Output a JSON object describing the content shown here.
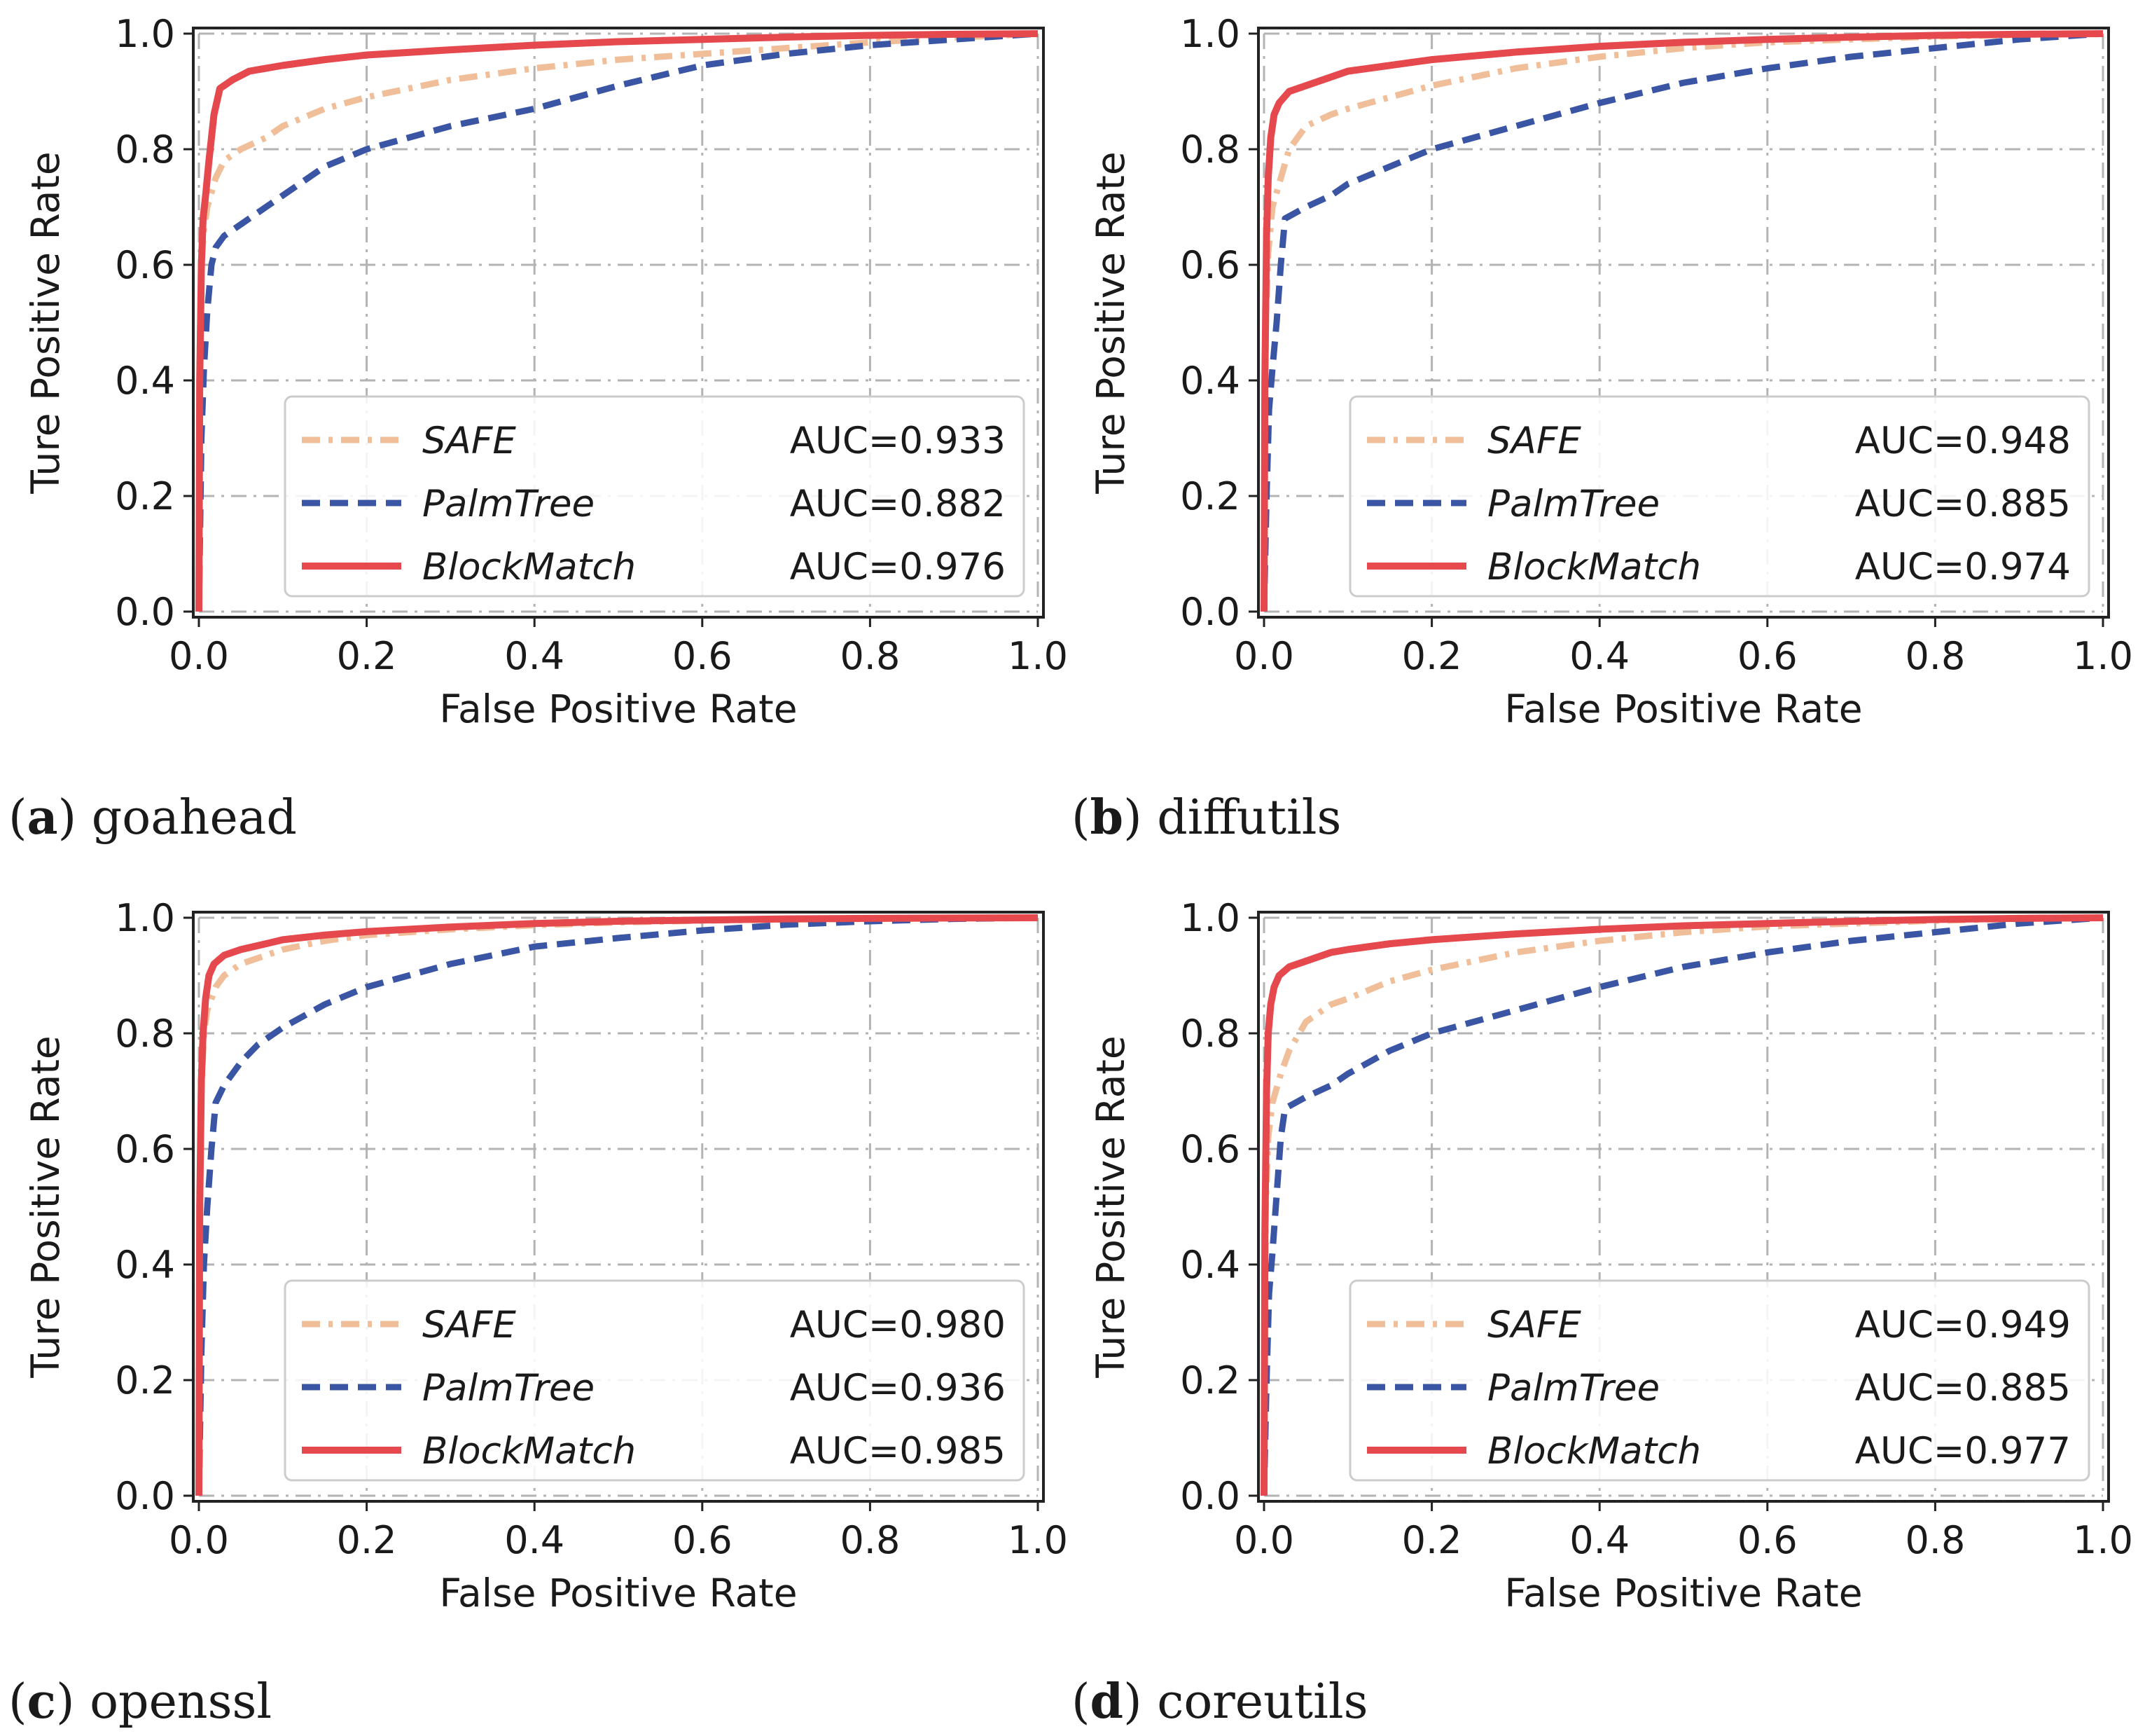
{
  "figure": {
    "axis_x_label": "False Positive Rate",
    "axis_y_label": "Ture Positive Rate"
  },
  "colors": {
    "SAFE": "#f0bf9a",
    "PalmTree": "#3b55a5",
    "BlockMatch": "#e5484d"
  },
  "chart_data": [
    {
      "type": "line",
      "caption_letter": "a",
      "caption_text": "goahead",
      "xlabel": "False Positive Rate",
      "ylabel": "Ture Positive Rate",
      "xlim": [
        0.0,
        1.0
      ],
      "ylim": [
        0.0,
        1.0
      ],
      "xticks": [
        "0.0",
        "0.2",
        "0.4",
        "0.6",
        "0.8",
        "1.0"
      ],
      "yticks": [
        "0.0",
        "0.2",
        "0.4",
        "0.6",
        "0.8",
        "1.0"
      ],
      "grid": true,
      "legend_position": "lower-right",
      "series": [
        {
          "name": "SAFE",
          "auc": "AUC=0.933",
          "style": "dashdot",
          "x": [
            0,
            0.001,
            0.003,
            0.006,
            0.01,
            0.02,
            0.03,
            0.05,
            0.08,
            0.1,
            0.15,
            0.2,
            0.3,
            0.4,
            0.5,
            0.6,
            0.7,
            0.8,
            0.9,
            1.0
          ],
          "y": [
            0,
            0.45,
            0.6,
            0.66,
            0.7,
            0.75,
            0.78,
            0.8,
            0.82,
            0.84,
            0.87,
            0.89,
            0.92,
            0.94,
            0.955,
            0.965,
            0.975,
            0.985,
            0.993,
            1.0
          ]
        },
        {
          "name": "PalmTree",
          "auc": "AUC=0.882",
          "style": "dashed",
          "x": [
            0,
            0.003,
            0.006,
            0.01,
            0.015,
            0.02,
            0.03,
            0.05,
            0.07,
            0.1,
            0.15,
            0.2,
            0.3,
            0.4,
            0.5,
            0.6,
            0.7,
            0.8,
            0.9,
            1.0
          ],
          "y": [
            0,
            0.3,
            0.42,
            0.52,
            0.6,
            0.63,
            0.65,
            0.67,
            0.69,
            0.72,
            0.77,
            0.8,
            0.84,
            0.87,
            0.91,
            0.945,
            0.965,
            0.98,
            0.99,
            1.0
          ]
        },
        {
          "name": "BlockMatch",
          "auc": "AUC=0.976",
          "style": "solid",
          "x": [
            0,
            0.001,
            0.003,
            0.005,
            0.008,
            0.012,
            0.018,
            0.025,
            0.04,
            0.06,
            0.1,
            0.15,
            0.2,
            0.3,
            0.4,
            0.5,
            0.6,
            0.7,
            0.8,
            0.9,
            1.0
          ],
          "y": [
            0,
            0.4,
            0.6,
            0.68,
            0.72,
            0.78,
            0.86,
            0.905,
            0.92,
            0.935,
            0.945,
            0.955,
            0.963,
            0.972,
            0.98,
            0.986,
            0.99,
            0.994,
            0.997,
            0.999,
            1.0
          ]
        }
      ]
    },
    {
      "type": "line",
      "caption_letter": "b",
      "caption_text": "diffutils",
      "xlabel": "False Positive Rate",
      "ylabel": "Ture Positive Rate",
      "xlim": [
        0.0,
        1.0
      ],
      "ylim": [
        0.0,
        1.0
      ],
      "xticks": [
        "0.0",
        "0.2",
        "0.4",
        "0.6",
        "0.8",
        "1.0"
      ],
      "yticks": [
        "0.0",
        "0.2",
        "0.4",
        "0.6",
        "0.8",
        "1.0"
      ],
      "grid": true,
      "legend_position": "lower-right",
      "series": [
        {
          "name": "SAFE",
          "auc": "AUC=0.948",
          "style": "dashdot",
          "x": [
            0,
            0.002,
            0.005,
            0.01,
            0.02,
            0.03,
            0.05,
            0.08,
            0.1,
            0.15,
            0.2,
            0.3,
            0.4,
            0.5,
            0.6,
            0.7,
            0.8,
            0.9,
            1.0
          ],
          "y": [
            0,
            0.5,
            0.62,
            0.7,
            0.75,
            0.8,
            0.84,
            0.86,
            0.87,
            0.89,
            0.91,
            0.94,
            0.96,
            0.975,
            0.985,
            0.99,
            0.995,
            0.998,
            1.0
          ]
        },
        {
          "name": "PalmTree",
          "auc": "AUC=0.885",
          "style": "dashed",
          "x": [
            0,
            0.003,
            0.006,
            0.01,
            0.015,
            0.02,
            0.025,
            0.05,
            0.08,
            0.1,
            0.15,
            0.2,
            0.3,
            0.4,
            0.5,
            0.6,
            0.7,
            0.8,
            0.9,
            1.0
          ],
          "y": [
            0,
            0.2,
            0.35,
            0.42,
            0.5,
            0.6,
            0.68,
            0.7,
            0.72,
            0.74,
            0.77,
            0.8,
            0.84,
            0.88,
            0.915,
            0.94,
            0.96,
            0.975,
            0.99,
            1.0
          ]
        },
        {
          "name": "BlockMatch",
          "auc": "AUC=0.974",
          "style": "solid",
          "x": [
            0,
            0.001,
            0.003,
            0.005,
            0.008,
            0.012,
            0.018,
            0.03,
            0.05,
            0.08,
            0.1,
            0.15,
            0.2,
            0.3,
            0.4,
            0.5,
            0.6,
            0.7,
            0.8,
            0.9,
            1.0
          ],
          "y": [
            0,
            0.4,
            0.65,
            0.75,
            0.82,
            0.86,
            0.88,
            0.9,
            0.91,
            0.925,
            0.935,
            0.945,
            0.955,
            0.968,
            0.978,
            0.985,
            0.99,
            0.994,
            0.997,
            0.999,
            1.0
          ]
        }
      ]
    },
    {
      "type": "line",
      "caption_letter": "c",
      "caption_text": "openssl",
      "xlabel": "False Positive Rate",
      "ylabel": "Ture Positive Rate",
      "xlim": [
        0.0,
        1.0
      ],
      "ylim": [
        0.0,
        1.0
      ],
      "xticks": [
        "0.0",
        "0.2",
        "0.4",
        "0.6",
        "0.8",
        "1.0"
      ],
      "yticks": [
        "0.0",
        "0.2",
        "0.4",
        "0.6",
        "0.8",
        "1.0"
      ],
      "grid": true,
      "legend_position": "lower-right",
      "series": [
        {
          "name": "SAFE",
          "auc": "AUC=0.980",
          "style": "dashdot",
          "x": [
            0,
            0.001,
            0.003,
            0.006,
            0.01,
            0.02,
            0.03,
            0.05,
            0.08,
            0.1,
            0.15,
            0.2,
            0.3,
            0.4,
            0.5,
            0.6,
            0.7,
            0.8,
            0.9,
            1.0
          ],
          "y": [
            0,
            0.5,
            0.7,
            0.8,
            0.84,
            0.88,
            0.9,
            0.92,
            0.935,
            0.945,
            0.96,
            0.97,
            0.98,
            0.987,
            0.992,
            0.995,
            0.997,
            0.998,
            0.999,
            1.0
          ]
        },
        {
          "name": "PalmTree",
          "auc": "AUC=0.936",
          "style": "dashed",
          "x": [
            0,
            0.003,
            0.006,
            0.01,
            0.015,
            0.02,
            0.03,
            0.05,
            0.07,
            0.1,
            0.15,
            0.2,
            0.3,
            0.4,
            0.5,
            0.6,
            0.7,
            0.8,
            0.9,
            1.0
          ],
          "y": [
            0,
            0.25,
            0.4,
            0.5,
            0.6,
            0.68,
            0.71,
            0.75,
            0.78,
            0.81,
            0.85,
            0.88,
            0.92,
            0.95,
            0.965,
            0.978,
            0.988,
            0.994,
            0.998,
            1.0
          ]
        },
        {
          "name": "BlockMatch",
          "auc": "AUC=0.985",
          "style": "solid",
          "x": [
            0,
            0.001,
            0.003,
            0.005,
            0.008,
            0.012,
            0.018,
            0.03,
            0.05,
            0.08,
            0.1,
            0.15,
            0.2,
            0.3,
            0.4,
            0.5,
            0.6,
            0.7,
            0.8,
            0.9,
            1.0
          ],
          "y": [
            0,
            0.5,
            0.72,
            0.8,
            0.86,
            0.9,
            0.92,
            0.935,
            0.945,
            0.955,
            0.962,
            0.97,
            0.976,
            0.984,
            0.99,
            0.994,
            0.996,
            0.998,
            0.999,
            0.9995,
            1.0
          ]
        }
      ]
    },
    {
      "type": "line",
      "caption_letter": "d",
      "caption_text": "coreutils",
      "xlabel": "False Positive Rate",
      "ylabel": "Ture Positive Rate",
      "xlim": [
        0.0,
        1.0
      ],
      "ylim": [
        0.0,
        1.0
      ],
      "xticks": [
        "0.0",
        "0.2",
        "0.4",
        "0.6",
        "0.8",
        "1.0"
      ],
      "yticks": [
        "0.0",
        "0.2",
        "0.4",
        "0.6",
        "0.8",
        "1.0"
      ],
      "grid": true,
      "legend_position": "lower-right",
      "series": [
        {
          "name": "SAFE",
          "auc": "AUC=0.949",
          "style": "dashdot",
          "x": [
            0,
            0.002,
            0.005,
            0.01,
            0.02,
            0.03,
            0.05,
            0.08,
            0.1,
            0.15,
            0.2,
            0.3,
            0.4,
            0.5,
            0.6,
            0.7,
            0.8,
            0.9,
            1.0
          ],
          "y": [
            0,
            0.5,
            0.62,
            0.68,
            0.73,
            0.77,
            0.82,
            0.85,
            0.86,
            0.89,
            0.91,
            0.94,
            0.96,
            0.975,
            0.985,
            0.99,
            0.995,
            0.998,
            1.0
          ]
        },
        {
          "name": "PalmTree",
          "auc": "AUC=0.885",
          "style": "dashed",
          "x": [
            0,
            0.003,
            0.006,
            0.01,
            0.015,
            0.02,
            0.025,
            0.05,
            0.08,
            0.1,
            0.15,
            0.2,
            0.3,
            0.4,
            0.5,
            0.6,
            0.7,
            0.8,
            0.9,
            1.0
          ],
          "y": [
            0,
            0.2,
            0.35,
            0.42,
            0.52,
            0.62,
            0.67,
            0.69,
            0.71,
            0.73,
            0.77,
            0.8,
            0.84,
            0.88,
            0.915,
            0.94,
            0.96,
            0.975,
            0.99,
            1.0
          ]
        },
        {
          "name": "BlockMatch",
          "auc": "AUC=0.977",
          "style": "solid",
          "x": [
            0,
            0.001,
            0.003,
            0.005,
            0.008,
            0.012,
            0.018,
            0.03,
            0.05,
            0.08,
            0.1,
            0.15,
            0.2,
            0.3,
            0.4,
            0.5,
            0.6,
            0.7,
            0.8,
            0.9,
            1.0
          ],
          "y": [
            0,
            0.45,
            0.7,
            0.8,
            0.85,
            0.88,
            0.9,
            0.915,
            0.925,
            0.94,
            0.945,
            0.955,
            0.962,
            0.972,
            0.98,
            0.986,
            0.99,
            0.994,
            0.997,
            0.999,
            1.0
          ]
        }
      ]
    }
  ]
}
